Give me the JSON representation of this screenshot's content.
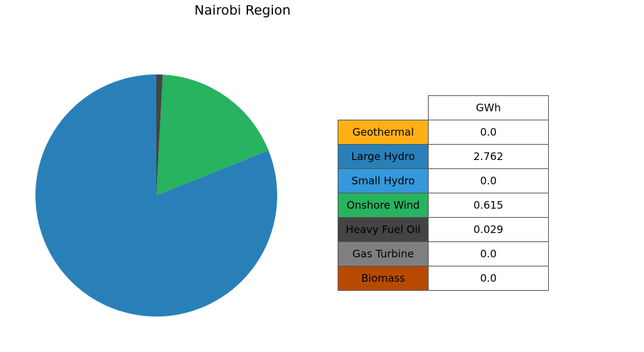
{
  "chart_data": {
    "type": "pie",
    "title": "Nairobi Region",
    "column_header": "GWh",
    "slices": [
      {
        "label": "Geothermal",
        "value": 0.0,
        "display": "0.0",
        "color": "#ffb014"
      },
      {
        "label": "Large Hydro",
        "value": 2.762,
        "display": "2.762",
        "color": "#2980b9"
      },
      {
        "label": "Small Hydro",
        "value": 0.0,
        "display": "0.0",
        "color": "#3498db"
      },
      {
        "label": "Onshore Wind",
        "value": 0.615,
        "display": "0.615",
        "color": "#27b35f"
      },
      {
        "label": "Heavy Fuel Oil",
        "value": 0.029,
        "display": "0.029",
        "color": "#444444"
      },
      {
        "label": "Gas Turbine",
        "value": 0.0,
        "display": "0.0",
        "color": "#7f7f7f"
      },
      {
        "label": "Biomass",
        "value": 0.0,
        "display": "0.0",
        "color": "#b84a00"
      }
    ]
  }
}
